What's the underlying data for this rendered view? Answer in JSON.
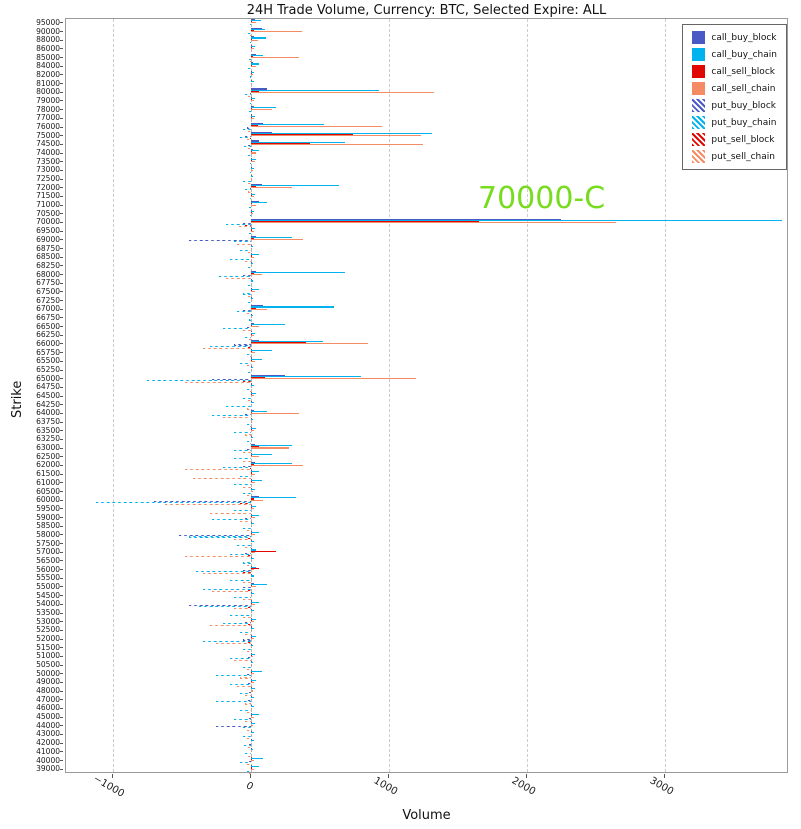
{
  "title": "24H Trade Volume, Currency: BTC, Selected Expire: ALL",
  "chart_data": {
    "type": "bar",
    "orientation": "horizontal",
    "title": "24H Trade Volume, Currency: BTC, Selected Expire: ALL",
    "xlabel": "Volume",
    "ylabel": "Strike",
    "xlim": [
      -1340,
      3900
    ],
    "x_ticks": [
      -1000,
      0,
      1000,
      2000,
      3000
    ],
    "x_tick_labels": [
      "−1000",
      "0",
      "1000",
      "2000",
      "3000"
    ],
    "grid": true,
    "legend_position": "top-right",
    "series": [
      "call_buy_block",
      "call_buy_chain",
      "call_sell_block",
      "call_sell_chain",
      "put_buy_block",
      "put_buy_chain",
      "put_sell_block",
      "put_sell_chain"
    ],
    "colors": {
      "call_buy_block": "#4a5ac4",
      "call_buy_chain": "#00b2ee",
      "call_sell_block": "#e10600",
      "call_sell_chain": "#f58b63",
      "put_buy_block": "#4a5ac4",
      "put_buy_chain": "#00b2ee",
      "put_sell_block": "#e10600",
      "put_sell_chain": "#f58b63"
    },
    "hatched": [
      "put_buy_block",
      "put_buy_chain",
      "put_sell_block",
      "put_sell_chain"
    ],
    "annotation": {
      "text": "70000-C",
      "color": "#78dc1e",
      "x": 1650,
      "near_strike": "72000"
    },
    "strikes": [
      "95000",
      "90000",
      "88000",
      "86000",
      "85000",
      "84000",
      "82000",
      "81000",
      "80000",
      "79000",
      "78000",
      "77000",
      "76000",
      "75000",
      "74500",
      "74000",
      "73500",
      "73000",
      "72500",
      "72000",
      "71500",
      "71000",
      "70500",
      "70000",
      "69500",
      "69000",
      "68750",
      "68500",
      "68250",
      "68000",
      "67750",
      "67500",
      "67250",
      "67000",
      "66750",
      "66500",
      "66250",
      "66000",
      "65750",
      "65500",
      "65250",
      "65000",
      "64750",
      "64500",
      "64250",
      "64000",
      "63750",
      "63500",
      "63250",
      "63000",
      "62500",
      "62000",
      "61500",
      "61000",
      "60500",
      "60000",
      "59500",
      "59000",
      "58500",
      "58000",
      "57500",
      "57000",
      "56500",
      "56000",
      "55500",
      "55000",
      "54500",
      "54000",
      "53500",
      "53000",
      "52500",
      "52000",
      "51500",
      "51000",
      "50500",
      "50000",
      "49000",
      "48000",
      "47000",
      "46000",
      "45000",
      "44000",
      "43000",
      "42000",
      "41000",
      "40000",
      "39000"
    ],
    "rows": [
      [
        30,
        70,
        10,
        40,
        0,
        -10,
        0,
        0
      ],
      [
        80,
        100,
        20,
        370,
        0,
        -20,
        0,
        -10
      ],
      [
        20,
        110,
        10,
        50,
        0,
        -10,
        0,
        0
      ],
      [
        10,
        30,
        5,
        20,
        0,
        0,
        0,
        0
      ],
      [
        40,
        90,
        15,
        350,
        0,
        -15,
        0,
        -10
      ],
      [
        15,
        60,
        10,
        40,
        0,
        -20,
        0,
        0
      ],
      [
        10,
        25,
        5,
        15,
        0,
        -10,
        0,
        0
      ],
      [
        5,
        20,
        0,
        10,
        0,
        0,
        0,
        0
      ],
      [
        120,
        930,
        60,
        1330,
        -10,
        -40,
        0,
        -20
      ],
      [
        10,
        30,
        5,
        20,
        0,
        -10,
        0,
        0
      ],
      [
        20,
        180,
        10,
        150,
        0,
        -15,
        0,
        0
      ],
      [
        10,
        30,
        5,
        20,
        0,
        0,
        0,
        0
      ],
      [
        90,
        530,
        50,
        950,
        -30,
        -60,
        0,
        -20
      ],
      [
        150,
        1310,
        740,
        1230,
        -40,
        -80,
        -10,
        -30
      ],
      [
        60,
        680,
        430,
        1250,
        -20,
        -50,
        0,
        -20
      ],
      [
        15,
        60,
        10,
        40,
        0,
        -20,
        0,
        0
      ],
      [
        10,
        40,
        5,
        30,
        0,
        -10,
        0,
        0
      ],
      [
        5,
        20,
        0,
        15,
        0,
        -5,
        0,
        0
      ],
      [
        5,
        15,
        0,
        10,
        0,
        -60,
        0,
        -20
      ],
      [
        80,
        640,
        40,
        300,
        -10,
        -40,
        0,
        -20
      ],
      [
        10,
        30,
        5,
        20,
        0,
        -10,
        0,
        0
      ],
      [
        60,
        120,
        10,
        40,
        0,
        -15,
        0,
        0
      ],
      [
        10,
        25,
        5,
        15,
        0,
        -10,
        0,
        0
      ],
      [
        2250,
        3850,
        1650,
        2650,
        -60,
        -180,
        -40,
        -90
      ],
      [
        10,
        30,
        5,
        20,
        0,
        -15,
        0,
        0
      ],
      [
        40,
        300,
        20,
        380,
        -450,
        -120,
        0,
        -100
      ],
      [
        5,
        15,
        0,
        10,
        0,
        -80,
        0,
        -20
      ],
      [
        10,
        60,
        5,
        20,
        0,
        -150,
        0,
        -40
      ],
      [
        5,
        15,
        0,
        10,
        0,
        -20,
        0,
        0
      ],
      [
        40,
        680,
        20,
        80,
        -60,
        -230,
        0,
        -180
      ],
      [
        5,
        15,
        0,
        10,
        0,
        -20,
        0,
        0
      ],
      [
        10,
        60,
        5,
        30,
        0,
        -60,
        0,
        -20
      ],
      [
        5,
        15,
        0,
        10,
        0,
        -20,
        0,
        0
      ],
      [
        90,
        600,
        40,
        120,
        -60,
        -100,
        0,
        -30
      ],
      [
        5,
        15,
        0,
        10,
        0,
        -15,
        0,
        0
      ],
      [
        20,
        250,
        10,
        60,
        -30,
        -200,
        0,
        -60
      ],
      [
        10,
        30,
        5,
        20,
        0,
        -40,
        0,
        -15
      ],
      [
        60,
        520,
        400,
        850,
        -120,
        -300,
        -20,
        -350
      ],
      [
        10,
        150,
        5,
        30,
        0,
        -30,
        0,
        -10
      ],
      [
        10,
        80,
        5,
        30,
        0,
        -80,
        0,
        -30
      ],
      [
        5,
        15,
        0,
        10,
        0,
        -20,
        0,
        0
      ],
      [
        250,
        800,
        100,
        1200,
        -280,
        -750,
        -60,
        -480
      ],
      [
        5,
        20,
        0,
        10,
        0,
        -30,
        0,
        -10
      ],
      [
        10,
        40,
        5,
        20,
        0,
        -60,
        0,
        -20
      ],
      [
        5,
        20,
        0,
        10,
        0,
        -180,
        0,
        -30
      ],
      [
        20,
        120,
        10,
        350,
        -40,
        -280,
        0,
        -200
      ],
      [
        5,
        15,
        0,
        10,
        0,
        -30,
        0,
        -10
      ],
      [
        10,
        40,
        5,
        20,
        0,
        -120,
        0,
        -40
      ],
      [
        5,
        15,
        0,
        10,
        0,
        -30,
        0,
        -10
      ],
      [
        30,
        300,
        60,
        280,
        -30,
        -120,
        0,
        -60
      ],
      [
        10,
        150,
        5,
        60,
        0,
        -120,
        0,
        -60
      ],
      [
        30,
        300,
        20,
        380,
        -60,
        -200,
        -10,
        -480
      ],
      [
        10,
        60,
        5,
        30,
        0,
        -80,
        0,
        -420
      ],
      [
        10,
        80,
        5,
        30,
        0,
        -120,
        0,
        -60
      ],
      [
        5,
        30,
        0,
        15,
        0,
        -60,
        0,
        -30
      ],
      [
        60,
        330,
        20,
        90,
        -700,
        -1120,
        -80,
        -620
      ],
      [
        10,
        40,
        5,
        20,
        0,
        -120,
        0,
        -300
      ],
      [
        10,
        60,
        5,
        30,
        -40,
        -280,
        0,
        -80
      ],
      [
        5,
        20,
        0,
        10,
        0,
        -60,
        0,
        -30
      ],
      [
        10,
        60,
        5,
        30,
        -520,
        -450,
        -20,
        -120
      ],
      [
        5,
        20,
        0,
        10,
        0,
        -100,
        0,
        -40
      ],
      [
        10,
        40,
        180,
        30,
        -40,
        -150,
        -20,
        -480
      ],
      [
        5,
        20,
        0,
        10,
        0,
        -60,
        0,
        -30
      ],
      [
        10,
        40,
        60,
        20,
        -60,
        -400,
        -60,
        -350
      ],
      [
        5,
        20,
        0,
        10,
        0,
        -150,
        0,
        -60
      ],
      [
        20,
        120,
        10,
        40,
        -60,
        -350,
        -20,
        -280
      ],
      [
        5,
        20,
        0,
        10,
        0,
        -120,
        0,
        -60
      ],
      [
        10,
        60,
        5,
        30,
        -450,
        -380,
        -20,
        -120
      ],
      [
        5,
        20,
        0,
        10,
        0,
        -150,
        0,
        -60
      ],
      [
        10,
        40,
        5,
        20,
        -40,
        -200,
        -20,
        -300
      ],
      [
        5,
        20,
        0,
        10,
        0,
        -80,
        0,
        -40
      ],
      [
        10,
        40,
        5,
        20,
        -60,
        -350,
        -20,
        -250
      ],
      [
        5,
        15,
        0,
        10,
        0,
        -60,
        0,
        -30
      ],
      [
        10,
        30,
        5,
        15,
        -20,
        -150,
        0,
        -120
      ],
      [
        5,
        15,
        0,
        10,
        0,
        -60,
        0,
        -30
      ],
      [
        10,
        80,
        5,
        20,
        -30,
        -250,
        0,
        -80
      ],
      [
        10,
        40,
        5,
        20,
        -20,
        -150,
        0,
        -100
      ],
      [
        5,
        30,
        0,
        15,
        -15,
        -80,
        0,
        -40
      ],
      [
        5,
        20,
        0,
        10,
        -20,
        -250,
        0,
        -40
      ],
      [
        5,
        20,
        0,
        10,
        0,
        -80,
        0,
        -30
      ],
      [
        10,
        60,
        5,
        20,
        -15,
        -120,
        0,
        -40
      ],
      [
        5,
        30,
        0,
        15,
        -250,
        -60,
        0,
        -30
      ],
      [
        5,
        20,
        0,
        10,
        0,
        -60,
        0,
        -30
      ],
      [
        5,
        20,
        0,
        10,
        -15,
        -50,
        0,
        -20
      ],
      [
        5,
        15,
        0,
        10,
        0,
        -40,
        0,
        -20
      ],
      [
        10,
        90,
        5,
        20,
        -15,
        -80,
        0,
        -30
      ],
      [
        10,
        60,
        5,
        20,
        0,
        -30,
        0,
        -15
      ]
    ]
  }
}
